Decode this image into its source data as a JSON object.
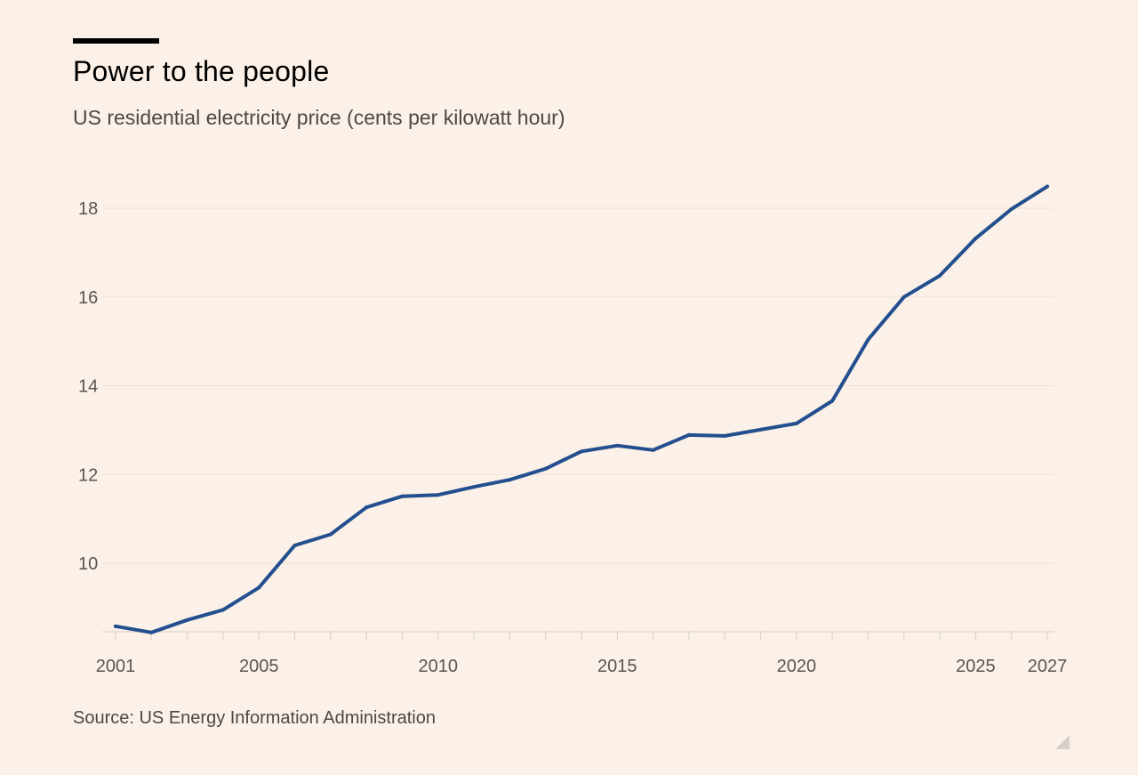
{
  "header": {
    "title": "Power to the people",
    "subtitle": "US residential electricity price (cents per kilowatt hour)"
  },
  "footer": {
    "source": "Source: US Energy Information Administration"
  },
  "colors": {
    "line": "#234f8f",
    "grid": "#ede3da",
    "axis": "#d9cfc6",
    "background": "#fbf1e8"
  },
  "chart_data": {
    "type": "line",
    "title": "Power to the people",
    "subtitle": "US residential electricity price (cents per kilowatt hour)",
    "xlabel": "",
    "ylabel": "",
    "xlim": [
      2001,
      2027
    ],
    "ylim": [
      8.5,
      18.5
    ],
    "grid": true,
    "legend": "none",
    "x_ticks": [
      2001,
      2005,
      2010,
      2015,
      2020,
      2025,
      2027
    ],
    "y_ticks": [
      10,
      12,
      14,
      16,
      18
    ],
    "series": [
      {
        "name": "US residential electricity price",
        "x": [
          2001,
          2002,
          2003,
          2004,
          2005,
          2006,
          2007,
          2008,
          2009,
          2010,
          2011,
          2012,
          2013,
          2014,
          2015,
          2016,
          2017,
          2018,
          2019,
          2020,
          2021,
          2022,
          2023,
          2024,
          2025,
          2026,
          2027
        ],
        "values": [
          8.58,
          8.44,
          8.72,
          8.95,
          9.45,
          10.4,
          10.65,
          11.26,
          11.51,
          11.54,
          11.72,
          11.88,
          12.13,
          12.52,
          12.65,
          12.55,
          12.89,
          12.87,
          13.01,
          13.15,
          13.66,
          15.04,
          16.0,
          16.48,
          17.32,
          17.98,
          18.49
        ]
      }
    ]
  }
}
